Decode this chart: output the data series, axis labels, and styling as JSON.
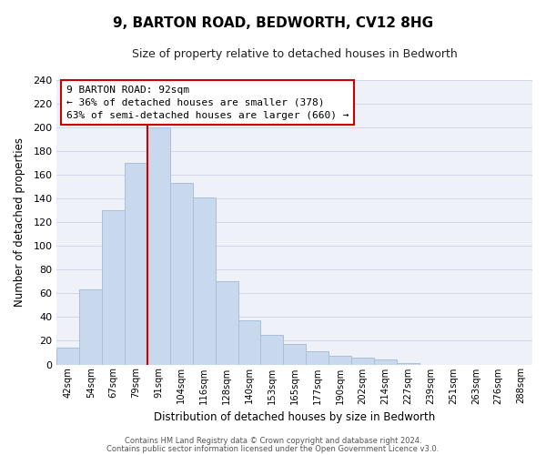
{
  "title": "9, BARTON ROAD, BEDWORTH, CV12 8HG",
  "subtitle": "Size of property relative to detached houses in Bedworth",
  "xlabel": "Distribution of detached houses by size in Bedworth",
  "ylabel": "Number of detached properties",
  "bar_labels": [
    "42sqm",
    "54sqm",
    "67sqm",
    "79sqm",
    "91sqm",
    "104sqm",
    "116sqm",
    "128sqm",
    "140sqm",
    "153sqm",
    "165sqm",
    "177sqm",
    "190sqm",
    "202sqm",
    "214sqm",
    "227sqm",
    "239sqm",
    "251sqm",
    "263sqm",
    "276sqm",
    "288sqm"
  ],
  "bar_heights": [
    14,
    63,
    130,
    170,
    200,
    153,
    141,
    70,
    37,
    25,
    17,
    11,
    7,
    6,
    4,
    1,
    0,
    0,
    0,
    0,
    0
  ],
  "bar_color": "#c8d9ee",
  "bar_edge_color": "#a8c0d8",
  "highlight_bar_index": 4,
  "highlight_line_color": "#cc0000",
  "ylim": [
    0,
    240
  ],
  "yticks": [
    0,
    20,
    40,
    60,
    80,
    100,
    120,
    140,
    160,
    180,
    200,
    220,
    240
  ],
  "annotation_title": "9 BARTON ROAD: 92sqm",
  "annotation_line1": "← 36% of detached houses are smaller (378)",
  "annotation_line2": "63% of semi-detached houses are larger (660) →",
  "footer_line1": "Contains HM Land Registry data © Crown copyright and database right 2024.",
  "footer_line2": "Contains public sector information licensed under the Open Government Licence v3.0.",
  "grid_color": "#d0d8e8",
  "background_color": "#eef2f8"
}
